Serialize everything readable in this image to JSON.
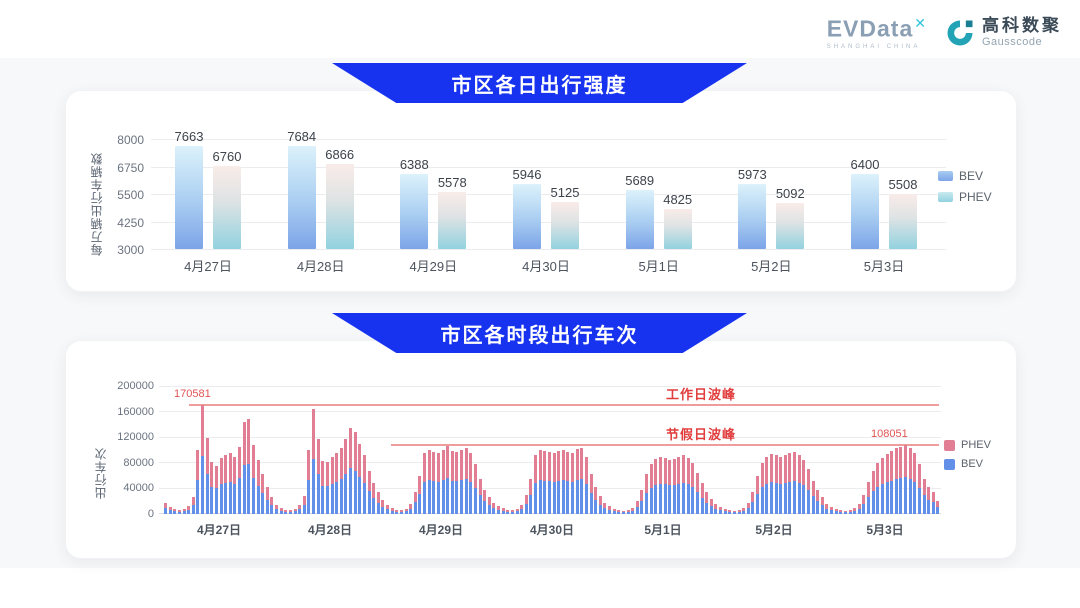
{
  "header": {
    "evdata": {
      "brand": "EVData",
      "mark": "✕",
      "tagline": "SHANGHAI CHINA"
    },
    "gausscode": {
      "name_cn": "高科数聚",
      "name_en": "Gausscode"
    }
  },
  "colors": {
    "banner_blue": "#1733f0",
    "bev_top_chart": "#7ca4e8",
    "phev_top_chart": "#92d2df",
    "bev_bottom_chart": "#6290e8",
    "phev_bottom_chart": "#e27e94",
    "annotation_red": "#e23d3d"
  },
  "chart_data": [
    {
      "id": "daily_intensity",
      "type": "bar",
      "title": "市区各日出行强度",
      "ylabel": "每万辆出行车辆数",
      "ylim": [
        3000,
        8000
      ],
      "yticks": [
        3000,
        4250,
        5500,
        6750,
        8000
      ],
      "grid": true,
      "legend_position": "right",
      "categories": [
        "4月27日",
        "4月28日",
        "4月29日",
        "4月30日",
        "5月1日",
        "5月2日",
        "5月3日"
      ],
      "series": [
        {
          "name": "BEV",
          "values": [
            7663,
            7684,
            6388,
            5946,
            5689,
            5973,
            6400
          ]
        },
        {
          "name": "PHEV",
          "values": [
            6760,
            6866,
            5578,
            5125,
            4825,
            5092,
            5508
          ]
        }
      ]
    },
    {
      "id": "hourly_trips",
      "type": "stacked-bar",
      "title": "市区各时段出行车次",
      "ylabel": "出行车次",
      "ylim": [
        0,
        200000
      ],
      "yticks": [
        0,
        40000,
        80000,
        120000,
        160000,
        200000
      ],
      "grid": true,
      "legend_position": "right",
      "legend": [
        "PHEV",
        "BEV"
      ],
      "hours_per_day": 24,
      "categories": [
        "4月27日",
        "4月28日",
        "4月29日",
        "4月30日",
        "5月1日",
        "5月2日",
        "5月3日"
      ],
      "annotations": [
        {
          "label": "工作日波峰",
          "value": 170581,
          "value_label": "170581"
        },
        {
          "label": "节假日波峰",
          "value": 108051,
          "value_label": "108051"
        }
      ],
      "days": [
        {
          "date": "4月27日",
          "total": [
            18000,
            11000,
            8000,
            6000,
            8000,
            13000,
            27000,
            101000,
            170581,
            119000,
            81000,
            76000,
            88000,
            92000,
            95000,
            90000,
            105000,
            145000,
            149000,
            108000,
            84000,
            62000,
            42000,
            26000
          ],
          "bev": [
            9500,
            5800,
            4200,
            3200,
            4200,
            6900,
            14300,
            53500,
            90400,
            63100,
            42900,
            40300,
            46600,
            48800,
            50400,
            47700,
            55700,
            76900,
            79000,
            57200,
            44500,
            32900,
            22300,
            13800
          ]
        },
        {
          "date": "4月28日",
          "total": [
            14000,
            9000,
            7000,
            6000,
            8000,
            14000,
            28000,
            100000,
            164000,
            117000,
            83000,
            82000,
            90000,
            96000,
            103000,
            118000,
            135000,
            128000,
            110000,
            92000,
            68000,
            48000,
            34000,
            22000
          ],
          "bev": [
            7400,
            4800,
            3700,
            3200,
            4200,
            7400,
            14800,
            53000,
            86900,
            62000,
            44000,
            43500,
            47700,
            50900,
            54600,
            62500,
            71600,
            67800,
            58300,
            48800,
            36000,
            25400,
            18000,
            11700
          ]
        },
        {
          "date": "4月29日",
          "total": [
            14000,
            9000,
            7000,
            6000,
            8000,
            15000,
            35000,
            60000,
            95000,
            100000,
            98000,
            96000,
            100000,
            106000,
            99000,
            97000,
            100000,
            104000,
            96000,
            78000,
            55000,
            38000,
            26000,
            17000
          ],
          "bev": [
            7400,
            4800,
            3700,
            3200,
            4200,
            8000,
            18600,
            31800,
            50400,
            53000,
            51900,
            50900,
            53000,
            56200,
            52500,
            51400,
            53000,
            55100,
            50900,
            41300,
            29200,
            20100,
            13800,
            9000
          ]
        },
        {
          "date": "4月30日",
          "total": [
            13000,
            9000,
            7000,
            6000,
            8000,
            14000,
            30000,
            55000,
            92000,
            100000,
            99000,
            97000,
            95000,
            99000,
            101000,
            98000,
            96000,
            102000,
            104000,
            90000,
            62000,
            42000,
            28000,
            18000
          ],
          "bev": [
            6900,
            4800,
            3700,
            3200,
            4200,
            7400,
            15900,
            29200,
            48800,
            53000,
            52500,
            51400,
            50400,
            52500,
            53500,
            51900,
            50900,
            54100,
            55100,
            47700,
            32900,
            22300,
            14800,
            9500
          ]
        },
        {
          "date": "5月1日",
          "total": [
            12000,
            8000,
            6000,
            5000,
            6000,
            10000,
            20000,
            38000,
            62000,
            78000,
            86000,
            90000,
            88000,
            85000,
            87000,
            90000,
            92000,
            88000,
            80000,
            65000,
            48000,
            34000,
            24000,
            15000
          ],
          "bev": [
            6400,
            4200,
            3200,
            2700,
            3200,
            5300,
            10600,
            20100,
            32900,
            41300,
            45600,
            47700,
            46600,
            45100,
            46100,
            47700,
            48800,
            46600,
            42400,
            34500,
            25400,
            18000,
            12700,
            8000
          ]
        },
        {
          "date": "5月2日",
          "total": [
            11000,
            8000,
            6000,
            5000,
            6000,
            10000,
            18000,
            35000,
            60000,
            80000,
            90000,
            94000,
            92000,
            90000,
            92000,
            95000,
            97000,
            93000,
            85000,
            70000,
            52000,
            38000,
            26000,
            16000
          ],
          "bev": [
            5800,
            4200,
            3200,
            2700,
            3200,
            5300,
            9500,
            18600,
            31800,
            42400,
            47700,
            49800,
            48800,
            47700,
            48800,
            50400,
            51400,
            49300,
            45100,
            37100,
            27600,
            20100,
            13800,
            8500
          ]
        },
        {
          "date": "5月3日",
          "total": [
            11000,
            8000,
            6000,
            5000,
            6000,
            9000,
            16000,
            30000,
            50000,
            68000,
            80000,
            88000,
            94000,
            99000,
            103000,
            105000,
            108051,
            103000,
            96000,
            78000,
            55000,
            42000,
            35000,
            20000
          ],
          "bev": [
            5800,
            4200,
            3200,
            2700,
            3200,
            4800,
            8500,
            15900,
            26500,
            36000,
            42400,
            46600,
            49800,
            52500,
            54600,
            55700,
            57300,
            54600,
            50900,
            41300,
            29200,
            22300,
            18600,
            10600
          ]
        }
      ]
    }
  ]
}
